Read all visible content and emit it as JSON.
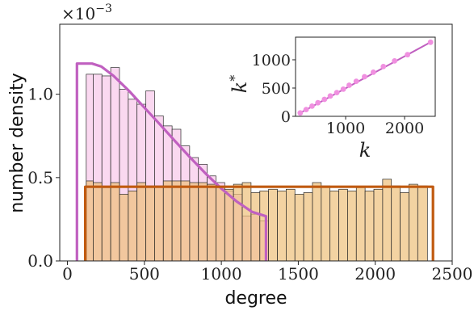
{
  "chart_data": {
    "type": "bar",
    "xlabel": "degree",
    "ylabel": "number density",
    "multiplier": "×10",
    "multiplier_exponent": "−3",
    "xlim": [
      -50,
      2500
    ],
    "ylim": [
      0,
      0.00142
    ],
    "xticks": [
      {
        "value": 0,
        "label": "0"
      },
      {
        "value": 500,
        "label": "500"
      },
      {
        "value": 1000,
        "label": "1000"
      },
      {
        "value": 1500,
        "label": "1500"
      },
      {
        "value": 2000,
        "label": "2000"
      },
      {
        "value": 2500,
        "label": "2500"
      }
    ],
    "yticks": [
      {
        "value": 0,
        "label": "0.0"
      },
      {
        "value": 0.0005,
        "label": "0.5"
      },
      {
        "value": 0.001,
        "label": "1.0"
      }
    ],
    "colors": {
      "pink_fill": "#f8c8ea",
      "orange_fill": "#eec07a",
      "pink_line": "#c060c0",
      "orange_line": "#c05a10",
      "bar_edge": "#2a2a2a"
    },
    "histograms": [
      {
        "edges": [
          122,
          167,
          224,
          281,
          338,
          395,
          452,
          509,
          566,
          623,
          680,
          737,
          794,
          851,
          908,
          965,
          1022,
          1079,
          1136,
          1193,
          1250,
          1307
        ],
        "values": [
          0.00112,
          0.00112,
          0.00111,
          0.00116,
          0.00103,
          0.00097,
          0.00094,
          0.00102,
          0.00087,
          0.00081,
          0.00079,
          0.00069,
          0.00062,
          0.00058,
          0.00051,
          0.00047,
          0.00042,
          0.0004,
          0.00027,
          0.00028,
          0.00024
        ],
        "fill": "#f8c8ea"
      },
      {
        "edges": [
          122,
          167,
          224,
          281,
          338,
          395,
          452,
          509,
          566,
          623,
          680,
          737,
          794,
          851,
          908,
          965,
          1022,
          1079,
          1136,
          1193,
          1250,
          1307,
          1364,
          1421,
          1478,
          1535,
          1592,
          1649,
          1706,
          1763,
          1820,
          1877,
          1934,
          1991,
          2048,
          2105,
          2162,
          2219,
          2276,
          2339
        ],
        "values": [
          0.00048,
          0.00047,
          0.00044,
          0.00047,
          0.0004,
          0.00042,
          0.00047,
          0.00045,
          0.00045,
          0.00048,
          0.00048,
          0.00048,
          0.00047,
          0.00047,
          0.00046,
          0.00044,
          0.00043,
          0.00046,
          0.00047,
          0.00041,
          0.00042,
          0.00043,
          0.00042,
          0.00043,
          0.0004,
          0.00041,
          0.00047,
          0.00045,
          0.00042,
          0.00043,
          0.00042,
          0.00044,
          0.00042,
          0.00043,
          0.00049,
          0.00045,
          0.00041,
          0.00046,
          0.00045
        ],
        "fill": "#eec07a"
      }
    ],
    "curves": [
      {
        "points": [
          [
            62,
            0
          ],
          [
            62,
            0.001184
          ],
          [
            160,
            0.001184
          ],
          [
            220,
            0.001166
          ],
          [
            300,
            0.00111
          ],
          [
            400,
            0.00102
          ],
          [
            500,
            0.00092
          ],
          [
            600,
            0.00082
          ],
          [
            700,
            0.000718
          ],
          [
            800,
            0.000618
          ],
          [
            900,
            0.000522
          ],
          [
            1000,
            0.000434
          ],
          [
            1100,
            0.000356
          ],
          [
            1200,
            0.000294
          ],
          [
            1290,
            0.000268
          ],
          [
            1290,
            0
          ]
        ],
        "color": "#c060c0"
      },
      {
        "points": [
          [
            116,
            0
          ],
          [
            116,
            0.000445
          ],
          [
            2375,
            0.000445
          ],
          [
            2375,
            0
          ]
        ],
        "color": "#c05a10"
      }
    ],
    "inset": {
      "type": "scatter",
      "xlabel": "k",
      "ylabel": "k",
      "ylabel_superscript": "*",
      "xlim": [
        150,
        2520
      ],
      "ylim": [
        0,
        1400
      ],
      "xticks": [
        {
          "value": 1000,
          "label": "1000"
        },
        {
          "value": 2000,
          "label": "2000"
        }
      ],
      "yticks": [
        {
          "value": 0,
          "label": "0"
        },
        {
          "value": 500,
          "label": "500"
        },
        {
          "value": 1000,
          "label": "1000"
        }
      ],
      "x": [
        230,
        330,
        430,
        530,
        640,
        740,
        850,
        960,
        1060,
        1180,
        1320,
        1470,
        1640,
        1830,
        2050,
        2440
      ],
      "y": [
        60,
        120,
        180,
        240,
        300,
        360,
        420,
        480,
        550,
        620,
        700,
        780,
        880,
        980,
        1090,
        1310
      ],
      "fit": [
        [
          230,
          60
        ],
        [
          2440,
          1310
        ]
      ],
      "point_color": "#f090e0",
      "line_color": "#c060c0"
    }
  }
}
